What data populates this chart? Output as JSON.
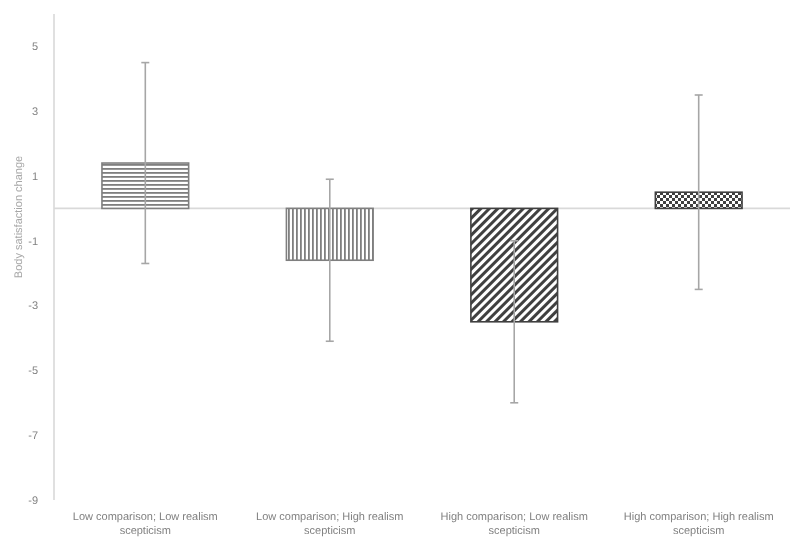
{
  "chart_data": {
    "type": "bar",
    "ylabel": "Body satisfaction change",
    "categories": [
      "Low comparison; Low realism scepticism",
      "Low comparison; High realism scepticism",
      "High comparison; Low realism scepticism",
      "High comparison; High realism scepticism"
    ],
    "values": [
      1.4,
      -1.6,
      -3.5,
      0.5
    ],
    "errors": [
      3.1,
      2.5,
      2.5,
      3.0
    ],
    "colors": [
      "#7f7f7f",
      "#7f7f7f",
      "#404040",
      "#404040"
    ],
    "ylim": [
      -9,
      6
    ],
    "yticks": [
      5,
      3,
      1,
      -1,
      -3,
      -5,
      -7,
      -9
    ],
    "grid": false
  }
}
